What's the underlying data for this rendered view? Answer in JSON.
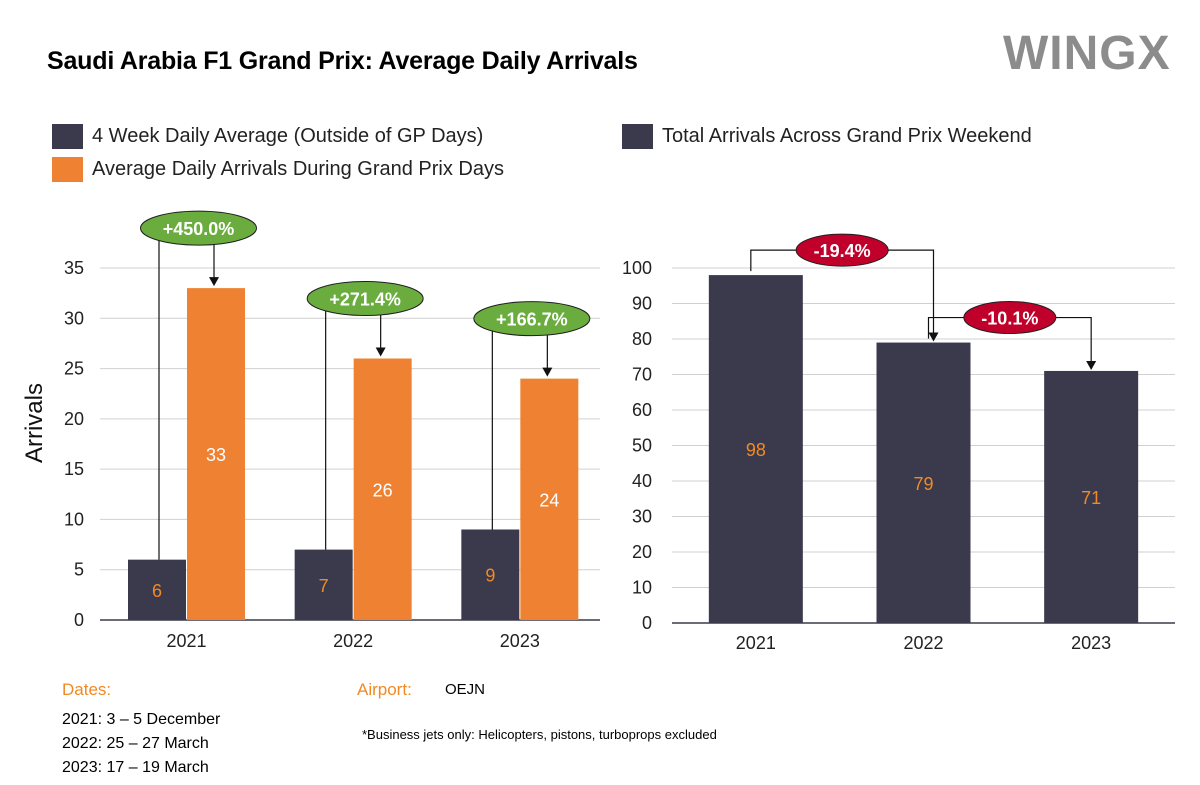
{
  "title": "Saudi Arabia F1 Grand Prix: Average Daily Arrivals",
  "logo_text": "WINGX",
  "colors": {
    "dark": "#3b3a4c",
    "orange": "#ee8232",
    "green": "#6aad3e",
    "red": "#c0002a",
    "grid": "#d0d0d0"
  },
  "legend_left": [
    {
      "label": "4 Week Daily Average (Outside of GP Days)",
      "color": "#3b3a4c"
    },
    {
      "label": "Average Daily Arrivals During Grand Prix Days",
      "color": "#ee8232"
    }
  ],
  "legend_right": [
    {
      "label": "Total Arrivals Across Grand Prix Weekend",
      "color": "#3b3a4c"
    }
  ],
  "chart_data": [
    {
      "type": "bar",
      "categories": [
        "2021",
        "2022",
        "2023"
      ],
      "series": [
        {
          "name": "4 Week Daily Average (Outside of GP Days)",
          "values": [
            6,
            7,
            9
          ]
        },
        {
          "name": "Average Daily Arrivals During Grand Prix Days",
          "values": [
            33,
            26,
            24
          ]
        }
      ],
      "ylabel": "Arrivals",
      "ylim": [
        0,
        35
      ],
      "yticks": [
        0,
        5,
        10,
        15,
        20,
        25,
        30,
        35
      ],
      "grid": true,
      "annotations": [
        "+450.0%",
        "+271.4%",
        "+166.7%"
      ]
    },
    {
      "type": "bar",
      "categories": [
        "2021",
        "2022",
        "2023"
      ],
      "series": [
        {
          "name": "Total Arrivals Across Grand Prix Weekend",
          "values": [
            98,
            79,
            71
          ]
        }
      ],
      "ylim": [
        0,
        100
      ],
      "yticks": [
        0,
        10,
        20,
        30,
        40,
        50,
        60,
        70,
        80,
        90,
        100
      ],
      "grid": true,
      "annotations": [
        "-19.4%",
        "-10.1%"
      ]
    }
  ],
  "dates": {
    "label": "Dates:",
    "lines": [
      "2021: 3 – 5 December",
      "2022: 25 – 27 March",
      "2023: 17 – 19 March"
    ]
  },
  "airport": {
    "label": "Airport:",
    "value": "OEJN"
  },
  "footnote": "*Business jets only: Helicopters, pistons, turboprops excluded"
}
